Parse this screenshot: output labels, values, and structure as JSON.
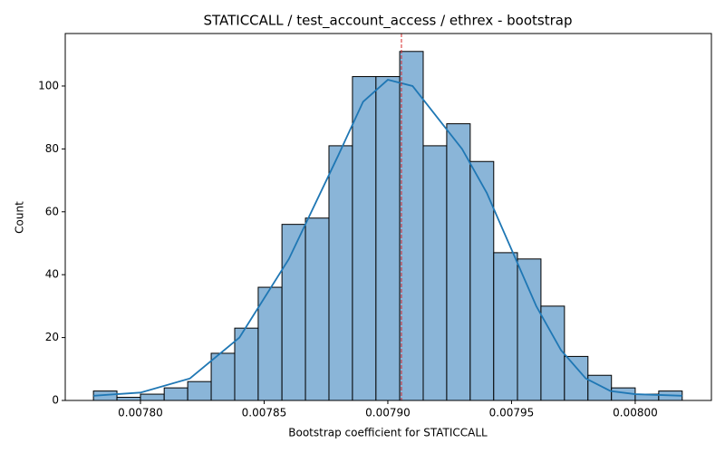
{
  "chart_data": {
    "type": "histogram",
    "title": "STATICCALL / test_account_access / ethrex - bootstrap",
    "xlabel": "Bootstrap coefficient for STATICCALL",
    "ylabel": "Count",
    "bins": [
      0.007781,
      0.0077905,
      0.0078,
      0.0078096,
      0.0078191,
      0.0078286,
      0.0078381,
      0.0078476,
      0.0078572,
      0.0078667,
      0.0078762,
      0.0078857,
      0.0078952,
      0.0079048,
      0.0079143,
      0.0079238,
      0.0079333,
      0.0079428,
      0.0079524,
      0.0079619,
      0.0079714,
      0.0079809,
      0.0079904,
      0.008,
      0.0080095,
      0.008019
    ],
    "counts": [
      3,
      1,
      2,
      4,
      6,
      15,
      23,
      36,
      56,
      58,
      81,
      103,
      103,
      111,
      81,
      88,
      76,
      47,
      45,
      30,
      14,
      8,
      4,
      2,
      3
    ],
    "color": "#8ab5d8",
    "kde": {
      "color": "#1f77b4",
      "x": [
        0.007781,
        0.0078,
        0.00782,
        0.00784,
        0.00786,
        0.00788,
        0.00789,
        0.0079,
        0.00791,
        0.00792,
        0.00793,
        0.00794,
        0.00795,
        0.00796,
        0.00797,
        0.00798,
        0.00799,
        0.008,
        0.008019
      ],
      "values": [
        1.5,
        2.5,
        7,
        20,
        45,
        78,
        95,
        102,
        100,
        90,
        80,
        66,
        48,
        30,
        16,
        7,
        3,
        2,
        1.5
      ]
    },
    "vline": {
      "value": 0.0079055,
      "color": "#d62728"
    },
    "xlim": [
      0.0077696,
      0.0080308
    ],
    "xticks": [
      {
        "value": 0.0078,
        "label": "0.00780"
      },
      {
        "value": 0.00785,
        "label": "0.00785"
      },
      {
        "value": 0.0079,
        "label": "0.00790"
      },
      {
        "value": 0.00795,
        "label": "0.00795"
      },
      {
        "value": 0.008,
        "label": "0.00800"
      }
    ],
    "ylim": [
      0,
      116.7
    ],
    "yticks": [
      0,
      20,
      40,
      60,
      80,
      100
    ]
  }
}
